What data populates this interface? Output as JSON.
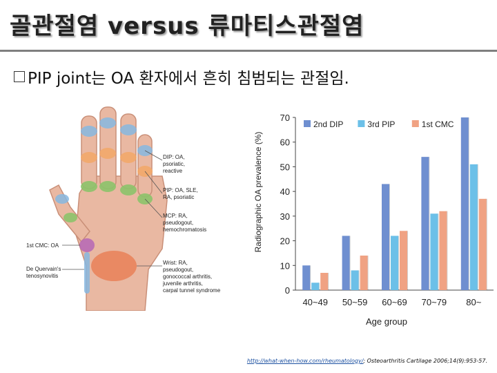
{
  "slide": {
    "title": "골관절염 versus 류마티스관절염",
    "bullet": "PIP joint는 OA 환자에서 흔히 침범되는 관절임.",
    "citation_link": "http://what-when-how.com/rheumatology/",
    "citation_text": "; Osteoarthritis Cartilage 2006;14(9):953-57."
  },
  "hand_labels": {
    "dip": [
      "DIP: OA,",
      "psoriatic,",
      "reactive"
    ],
    "pip": [
      "PIP: OA, SLE,",
      "RA, psoriatic"
    ],
    "mcp": [
      "MCP: RA,",
      "pseudogout,",
      "hemochromatosis"
    ],
    "cmc": [
      "1st CMC: OA"
    ],
    "dequervain": [
      "De Quervain's",
      "tenosynovitis"
    ],
    "wrist": [
      "Wrist: RA,",
      "pseudogout,",
      "gonococcal arthritis,",
      "juvenile arthritis,",
      "carpal tunnel syndrome"
    ]
  },
  "colors": {
    "dip": "#86b7e0",
    "pip": "#f2a86a",
    "mcp": "#8cc36a",
    "cmc": "#b86bb5",
    "wrist": "#e87a4e",
    "skin": "#e9b8a2"
  },
  "chart_data": {
    "type": "bar",
    "title": "",
    "xlabel": "Age group",
    "ylabel": "Radiographic OA prevalence (%)",
    "categories": [
      "40~49",
      "50~59",
      "60~69",
      "70~79",
      "80~"
    ],
    "ylim": [
      0,
      70
    ],
    "yticks": [
      0,
      10,
      20,
      30,
      40,
      50,
      60,
      70
    ],
    "legend_position": "top",
    "series": [
      {
        "name": "2nd DIP",
        "color": "#6f8fd0",
        "values": [
          10,
          22,
          43,
          54,
          70
        ]
      },
      {
        "name": "3rd PIP",
        "color": "#6cc0e8",
        "values": [
          3,
          8,
          22,
          31,
          51
        ]
      },
      {
        "name": "1st CMC",
        "color": "#f0a283",
        "values": [
          7,
          14,
          24,
          32,
          37
        ]
      }
    ]
  }
}
